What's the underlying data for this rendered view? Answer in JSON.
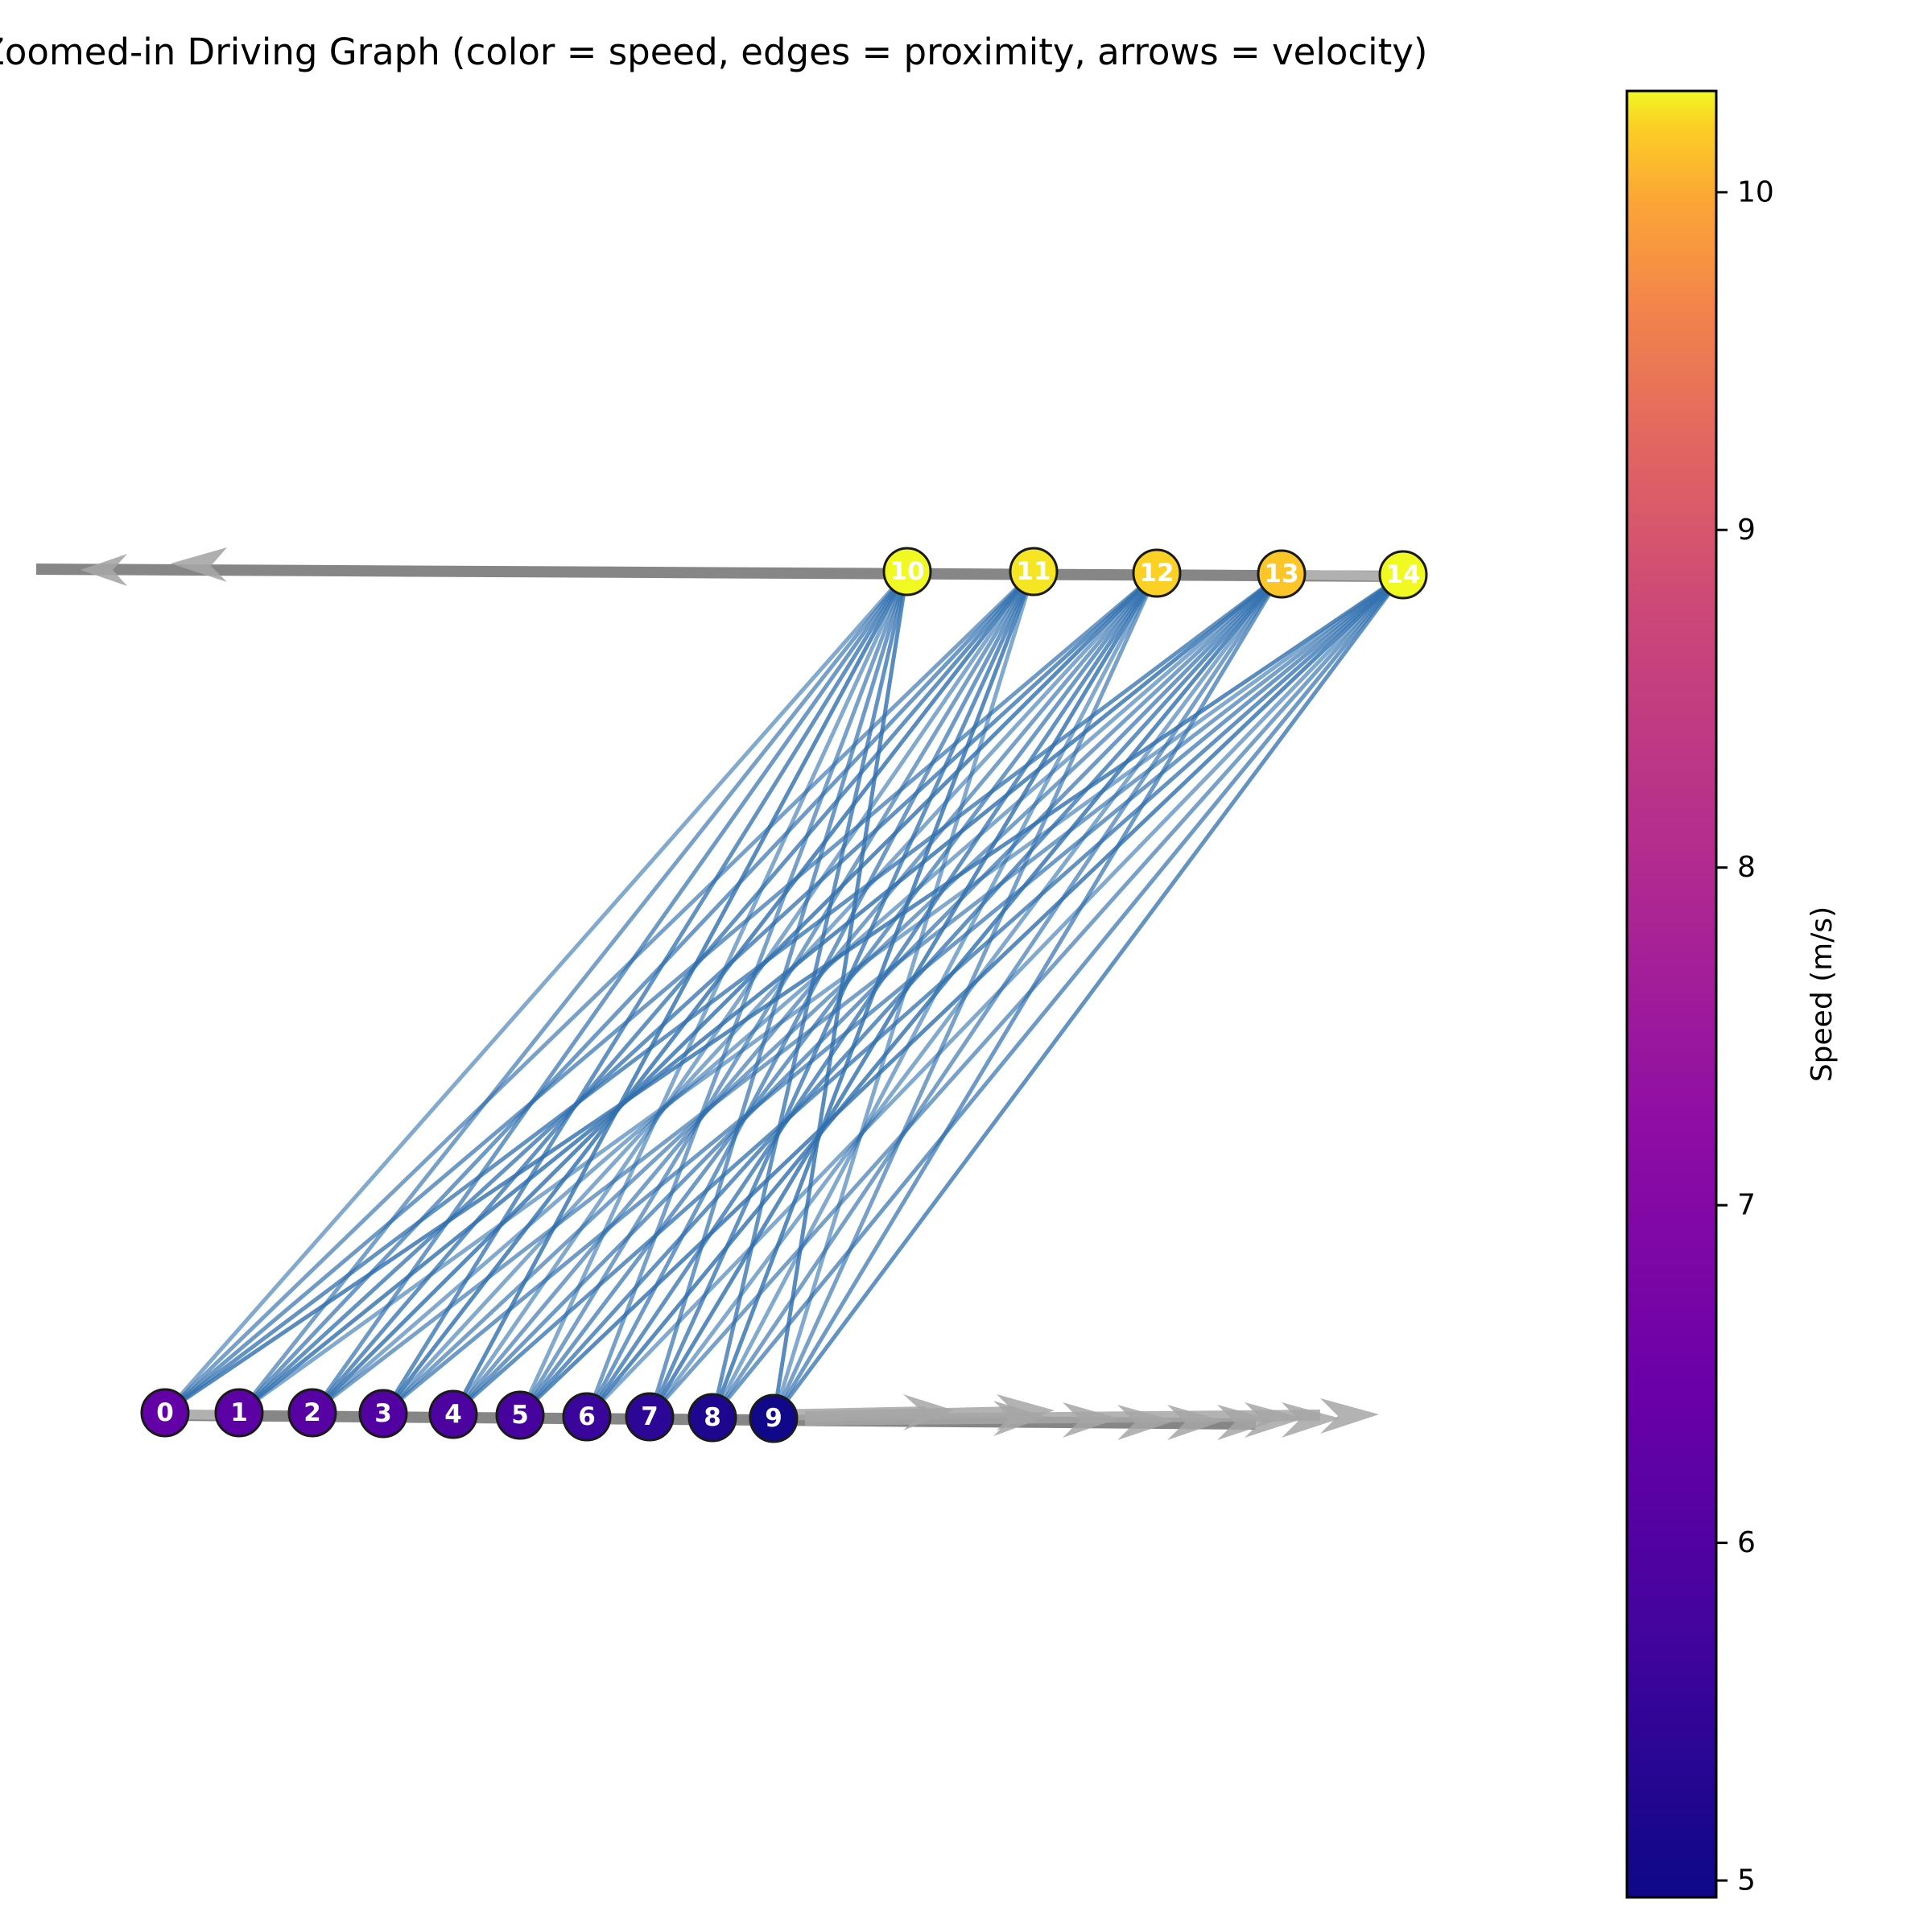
{
  "title": "Zoomed-in Driving Graph (color = speed, edges = proximity, arrows = velocity)",
  "colorbar": {
    "label": "Speed (m/s)",
    "min": 4.95,
    "max": 10.3,
    "ticks": [
      "5",
      "6",
      "7",
      "8",
      "9",
      "10"
    ],
    "colormap": "plasma"
  },
  "graph": {
    "nodes": [
      {
        "label": "0",
        "speed": 6.3
      },
      {
        "label": "1",
        "speed": 6.2
      },
      {
        "label": "2",
        "speed": 6.1
      },
      {
        "label": "3",
        "speed": 6.0
      },
      {
        "label": "4",
        "speed": 5.9
      },
      {
        "label": "5",
        "speed": 5.8
      },
      {
        "label": "6",
        "speed": 5.6
      },
      {
        "label": "7",
        "speed": 5.4
      },
      {
        "label": "8",
        "speed": 5.2
      },
      {
        "label": "9",
        "speed": 5.0
      },
      {
        "label": "10",
        "speed": 10.3
      },
      {
        "label": "11",
        "speed": 10.25
      },
      {
        "label": "12",
        "speed": 10.2
      },
      {
        "label": "13",
        "speed": 10.15
      },
      {
        "label": "14",
        "speed": 10.3
      }
    ],
    "proximity_edges": "every node 0–9 connected to every node 10–14",
    "node_edge_color": "#1a1a1a",
    "edge_color": "#2f6fae",
    "velocity_arrow_color": "#a6a6a6",
    "lane_color": "#808080"
  }
}
